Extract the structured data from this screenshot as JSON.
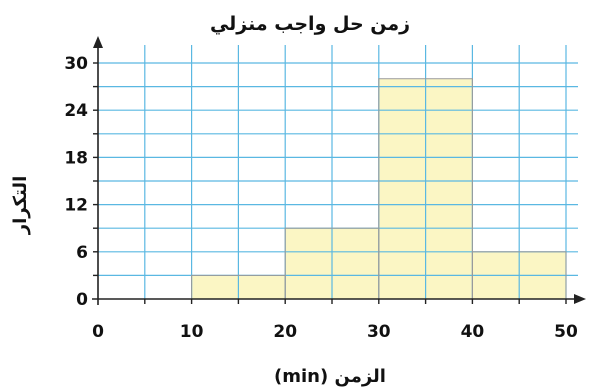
{
  "chart_data": {
    "type": "bar",
    "title": "زمن حل واجب منزلي",
    "xlabel": "الزمن (min)",
    "ylabel": "التكرار",
    "bins": [
      {
        "from": 10,
        "to": 20,
        "value": 3
      },
      {
        "from": 20,
        "to": 30,
        "value": 9
      },
      {
        "from": 30,
        "to": 40,
        "value": 28
      },
      {
        "from": 40,
        "to": 50,
        "value": 6
      }
    ],
    "xlim": [
      0,
      50
    ],
    "ylim": [
      0,
      30
    ],
    "x_ticks": [
      "0",
      "10",
      "20",
      "30",
      "40",
      "50"
    ],
    "y_ticks": [
      "0",
      "6",
      "12",
      "18",
      "24",
      "30"
    ],
    "x_tick_values": [
      0,
      10,
      20,
      30,
      40,
      50
    ],
    "y_tick_values": [
      0,
      6,
      12,
      18,
      24,
      30
    ],
    "x_grid_step": 5,
    "y_grid_step": 3,
    "grid": true,
    "bar_color": "#fbf6c4",
    "grid_color": "#5ab8e2"
  }
}
